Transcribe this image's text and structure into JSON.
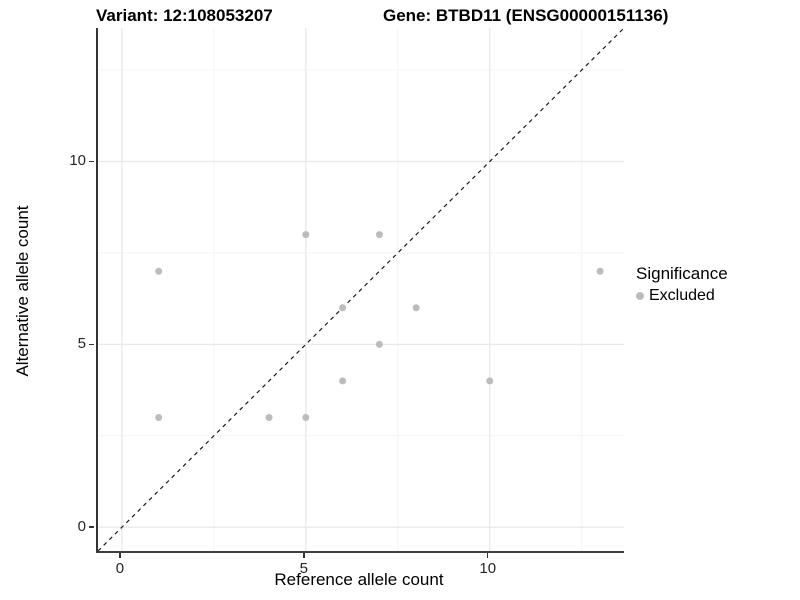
{
  "titles": {
    "left": "Variant: 12:108053207",
    "right": "Gene: BTBD11 (ENSG00000151136)"
  },
  "chart_data": {
    "type": "scatter",
    "title": "Variant: 12:108053207 / Gene: BTBD11 (ENSG00000151136)",
    "xlabel": "Reference allele count",
    "ylabel": "Alternative allele count",
    "xlim": [
      -0.65,
      13.65
    ],
    "ylim": [
      -0.65,
      13.65
    ],
    "x_ticks": [
      0,
      5,
      10
    ],
    "y_ticks": [
      0,
      5,
      10
    ],
    "x_minor_ticks": [
      2.5,
      7.5,
      12.5
    ],
    "y_minor_ticks": [
      2.5,
      7.5,
      12.5
    ],
    "grid": true,
    "identity_line": {
      "type": "abline",
      "slope": 1,
      "intercept": 0,
      "style": "dashed",
      "color": "#1a1a1a"
    },
    "series": [
      {
        "name": "Excluded",
        "color": "#bcbcbc",
        "points": [
          {
            "x": 1,
            "y": 7
          },
          {
            "x": 1,
            "y": 3
          },
          {
            "x": 4,
            "y": 3
          },
          {
            "x": 5,
            "y": 3
          },
          {
            "x": 5,
            "y": 8
          },
          {
            "x": 6,
            "y": 4
          },
          {
            "x": 6,
            "y": 6
          },
          {
            "x": 7,
            "y": 5
          },
          {
            "x": 7,
            "y": 8
          },
          {
            "x": 8,
            "y": 6
          },
          {
            "x": 10,
            "y": 4
          },
          {
            "x": 13,
            "y": 7
          }
        ]
      }
    ],
    "legend": {
      "title": "Significance",
      "position": "right",
      "entries": [
        {
          "label": "Excluded",
          "color": "#bcbcbc"
        }
      ]
    }
  },
  "colors": {
    "background": "#ffffff",
    "axis_line": "#333333",
    "grid_major": "#e8e8e8",
    "grid_minor": "#f4f4f4",
    "point": "#bcbcbc",
    "text": "#000000",
    "tick_text": "#262626"
  }
}
